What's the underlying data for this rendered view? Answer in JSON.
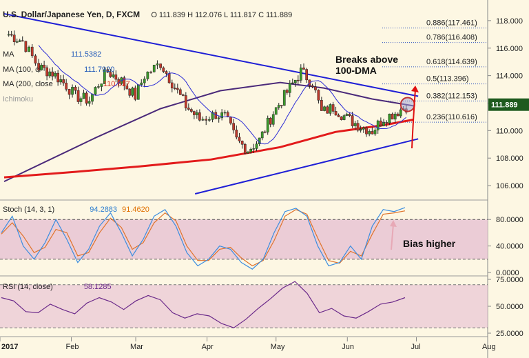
{
  "header": {
    "title": "U.S. Dollar/Japanese Yen, D, FXCM",
    "ohlc": "O 111.839 H 112.076 L 111.817 C 111.889",
    "ma50_label": "MA",
    "ma50_value": "111.5382",
    "ma100_label": "MA (100, cl",
    "ma100_value": "111.7920",
    "ma200_label": "MA (200, close",
    "ma200_value": "110.817",
    "ichimoku_label": "Ichimoku"
  },
  "annotations": {
    "breaks_line1": "Breaks above",
    "breaks_line2": "100-DMA",
    "bias": "Bias higher"
  },
  "stoch_header": {
    "label": "Stoch (14, 3, 1)",
    "k_value": "94.2883",
    "d_value": "91.4620"
  },
  "rsi_header": {
    "label": "RSI (14, close)",
    "value": "58.1285"
  },
  "colors": {
    "background": "#fdf7e3",
    "up_candle": "#3a9a2a",
    "down_candle": "#c0392b",
    "ma50": "#2b2bd6",
    "ma100": "#4b2a7a",
    "ma200": "#e21b1b",
    "trendline": "#1f1fd6",
    "stoch_k": "#3b8de0",
    "stoch_d": "#e0732b",
    "rsi": "#6b2a8a",
    "band": "#e8c4d4",
    "price_tag": "#1e5a1e"
  },
  "chart_data": [
    {
      "type": "candlestick",
      "title": "U.S. Dollar/Japanese Yen, D, FXCM",
      "y_axis_ticks": [
        "118.000",
        "116.000",
        "114.000",
        "112.000",
        "110.000",
        "108.000",
        "106.000"
      ],
      "ylim": [
        105.0,
        119.5
      ],
      "x_axis_ticks": [
        "2017",
        "Feb",
        "Mar",
        "Apr",
        "May",
        "Jun",
        "Jul",
        "Aug"
      ],
      "last_price": "111.889",
      "fibonacci_levels": [
        {
          "label": "0.886(117.461)",
          "value": 117.461
        },
        {
          "label": "0.786(116.408)",
          "value": 116.408
        },
        {
          "label": "0.618(114.639)",
          "value": 114.639
        },
        {
          "label": "0.5(113.396)",
          "value": 113.396
        },
        {
          "label": "0.382(112.153)",
          "value": 112.153
        },
        {
          "label": "0.236(110.616)",
          "value": 110.616
        }
      ],
      "trendlines": [
        {
          "name": "upper",
          "points": [
            [
              "2017-01-01",
              118.5
            ],
            [
              "2017-06-30",
              112.5
            ]
          ]
        },
        {
          "name": "lower",
          "points": [
            [
              "2017-03-25",
              105.4
            ],
            [
              "2017-06-30",
              109.4
            ]
          ]
        }
      ],
      "moving_averages": [
        {
          "name": "MA (100)",
          "points": [
            [
              "2017-01-01",
              106.3
            ],
            [
              "2017-02-10",
              109.5
            ],
            [
              "2017-03-10",
              111.6
            ],
            [
              "2017-04-05",
              112.9
            ],
            [
              "2017-05-01",
              113.5
            ],
            [
              "2017-05-20",
              113.1
            ],
            [
              "2017-06-10",
              112.3
            ],
            [
              "2017-06-28",
              111.8
            ]
          ]
        },
        {
          "name": "MA (200)",
          "points": [
            [
              "2017-01-01",
              106.6
            ],
            [
              "2017-02-01",
              107.0
            ],
            [
              "2017-03-01",
              107.4
            ],
            [
              "2017-04-01",
              107.9
            ],
            [
              "2017-05-01",
              108.8
            ],
            [
              "2017-05-25",
              109.9
            ],
            [
              "2017-06-15",
              110.4
            ],
            [
              "2017-06-28",
              110.8
            ]
          ]
        }
      ],
      "price_path": [
        [
          "2017-01-03",
          117.0
        ],
        [
          "2017-01-09",
          116.5
        ],
        [
          "2017-01-16",
          114.6
        ],
        [
          "2017-01-22",
          114.2
        ],
        [
          "2017-01-28",
          113.3
        ],
        [
          "2017-02-01",
          112.5
        ],
        [
          "2017-02-07",
          112.2
        ],
        [
          "2017-02-11",
          113.4
        ],
        [
          "2017-02-15",
          114.3
        ],
        [
          "2017-02-21",
          113.6
        ],
        [
          "2017-02-27",
          112.5
        ],
        [
          "2017-03-03",
          114.0
        ],
        [
          "2017-03-10",
          114.9
        ],
        [
          "2017-03-15",
          113.5
        ],
        [
          "2017-03-21",
          111.8
        ],
        [
          "2017-03-27",
          110.8
        ],
        [
          "2017-04-03",
          111.2
        ],
        [
          "2017-04-07",
          111.0
        ],
        [
          "2017-04-12",
          109.3
        ],
        [
          "2017-04-17",
          108.6
        ],
        [
          "2017-04-22",
          109.3
        ],
        [
          "2017-04-28",
          111.3
        ],
        [
          "2017-05-04",
          112.8
        ],
        [
          "2017-05-10",
          114.3
        ],
        [
          "2017-05-15",
          113.5
        ],
        [
          "2017-05-19",
          111.3
        ],
        [
          "2017-05-24",
          111.7
        ],
        [
          "2017-05-30",
          110.9
        ],
        [
          "2017-06-05",
          110.3
        ],
        [
          "2017-06-10",
          110.0
        ],
        [
          "2017-06-15",
          110.9
        ],
        [
          "2017-06-20",
          111.3
        ],
        [
          "2017-06-26",
          111.9
        ]
      ]
    },
    {
      "type": "line",
      "title": "Stoch (14, 3, 1)",
      "y_axis_ticks": [
        "80.0000",
        "40.0000",
        "0.0000"
      ],
      "ylim": [
        0,
        100
      ],
      "reference_lines": [
        80,
        20
      ],
      "series": [
        {
          "name": "94.2883",
          "values": [
            60,
            85,
            40,
            20,
            45,
            80,
            50,
            15,
            35,
            70,
            90,
            60,
            25,
            50,
            85,
            95,
            70,
            30,
            10,
            20,
            40,
            35,
            15,
            5,
            20,
            60,
            92,
            97,
            85,
            40,
            10,
            15,
            40,
            20,
            70,
            95,
            92,
            98
          ]
        },
        {
          "name": "91.4620",
          "values": [
            58,
            75,
            55,
            30,
            38,
            65,
            60,
            25,
            30,
            60,
            82,
            68,
            35,
            45,
            75,
            90,
            78,
            40,
            18,
            18,
            35,
            38,
            22,
            10,
            18,
            48,
            85,
            95,
            88,
            52,
            18,
            14,
            32,
            25,
            58,
            88,
            90,
            93
          ]
        }
      ]
    },
    {
      "type": "line",
      "title": "RSI (14, close)",
      "y_axis_ticks": [
        "75.0000",
        "50.0000",
        "25.0000"
      ],
      "ylim": [
        25,
        75
      ],
      "reference_lines": [
        70,
        30
      ],
      "series": [
        {
          "name": "58.1285",
          "values": [
            58,
            55,
            45,
            44,
            52,
            47,
            43,
            53,
            58,
            54,
            47,
            55,
            60,
            56,
            44,
            39,
            43,
            41,
            34,
            30,
            38,
            48,
            57,
            67,
            73,
            62,
            44,
            48,
            41,
            39,
            45,
            52,
            54,
            58
          ]
        }
      ]
    }
  ]
}
